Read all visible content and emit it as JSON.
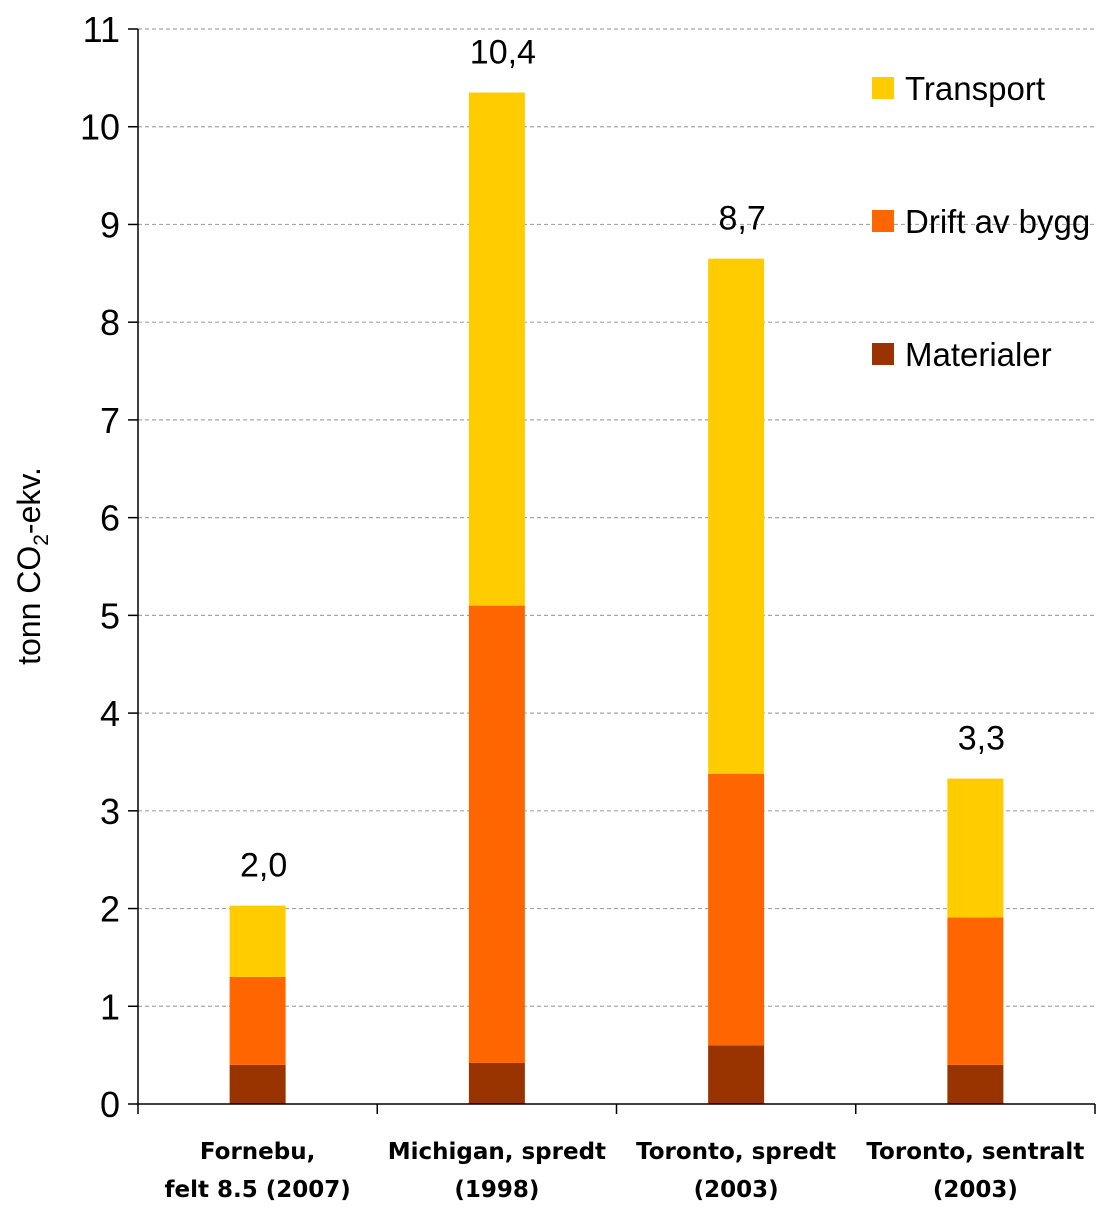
{
  "chart_data": {
    "type": "bar",
    "stacked": true,
    "ylabel": {
      "prefix": "tonn CO",
      "subscript": "2",
      "suffix": "-ekv."
    },
    "ylim": [
      0,
      11
    ],
    "yticks": [
      "0",
      "1",
      "2",
      "3",
      "4",
      "5",
      "6",
      "7",
      "8",
      "9",
      "10",
      "11"
    ],
    "grid": true,
    "legend_position": "top-right",
    "categories": [
      [
        "Fornebu,",
        "felt 8.5 (2007)"
      ],
      [
        "Michigan, spredt",
        "(1998)"
      ],
      [
        "Toronto, spredt",
        "(2003)"
      ],
      [
        "Toronto, sentralt",
        "(2003)"
      ]
    ],
    "series": [
      {
        "name": "Materialer",
        "color": "#993300",
        "values": [
          0.4,
          0.42,
          0.6,
          0.4
        ]
      },
      {
        "name": "Drift av bygg",
        "color": "#FF6600",
        "values": [
          0.9,
          4.68,
          2.78,
          1.51
        ]
      },
      {
        "name": "Transport",
        "color": "#FFCC00",
        "values": [
          0.73,
          5.25,
          5.27,
          1.42
        ]
      }
    ],
    "legend_order": [
      "Transport",
      "Drift av bygg",
      "Materialer"
    ],
    "totals": [
      "2,0",
      "10,4",
      "8,7",
      "3,3"
    ],
    "total_values": [
      2.03,
      10.35,
      8.65,
      3.33
    ]
  }
}
